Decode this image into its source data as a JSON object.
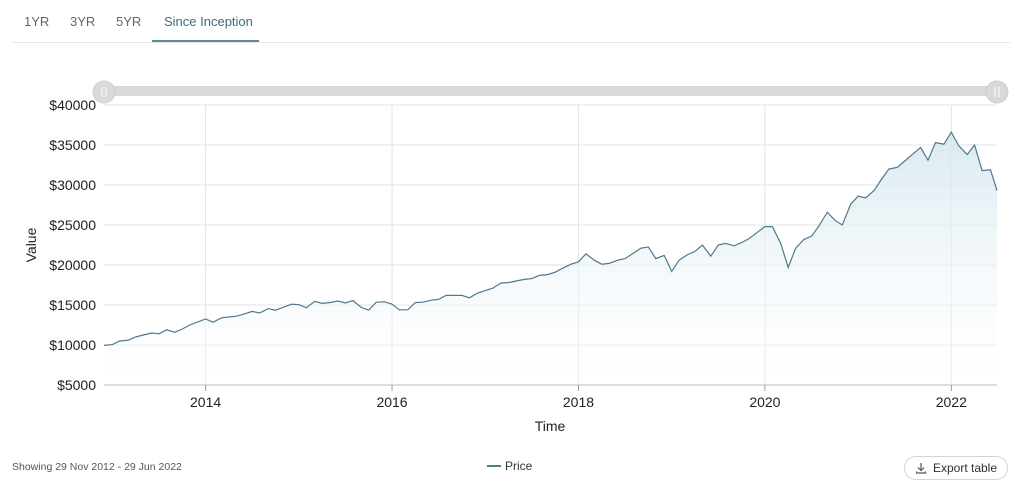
{
  "tabs": [
    {
      "label": "1YR",
      "active": false
    },
    {
      "label": "3YR",
      "active": false
    },
    {
      "label": "5YR",
      "active": false
    },
    {
      "label": "Since Inception",
      "active": true
    }
  ],
  "footer": {
    "range_text": "Showing 29 Nov 2012 - 29 Jun 2022",
    "export_label": "Export table",
    "export_icon": "download-icon"
  },
  "colors": {
    "line": "#4e7a8c",
    "area_top": "#d6e7ee",
    "active_tab": "#3d6c7c",
    "slider": "#d9d9d9"
  },
  "chart_data": {
    "type": "area",
    "xlabel": "Time",
    "ylabel": "Value",
    "xlim": [
      2012.91,
      2022.49
    ],
    "ylim": [
      5000,
      40000
    ],
    "xticks": [
      2014,
      2016,
      2018,
      2020,
      2022
    ],
    "xtick_labels": [
      "2014",
      "2016",
      "2018",
      "2020",
      "2022"
    ],
    "yticks": [
      5000,
      10000,
      15000,
      20000,
      25000,
      30000,
      35000,
      40000
    ],
    "ytick_labels": [
      "$5000",
      "$10000",
      "$15000",
      "$20000",
      "$25000",
      "$30000",
      "$35000",
      "$40000"
    ],
    "grid": true,
    "legend_position": "bottom-center",
    "series": [
      {
        "name": "Price",
        "points": [
          [
            2012.91,
            9950
          ],
          [
            2013.0,
            10050
          ],
          [
            2013.08,
            10500
          ],
          [
            2013.17,
            10600
          ],
          [
            2013.25,
            11000
          ],
          [
            2013.33,
            11250
          ],
          [
            2013.42,
            11500
          ],
          [
            2013.5,
            11400
          ],
          [
            2013.58,
            11900
          ],
          [
            2013.67,
            11600
          ],
          [
            2013.75,
            12000
          ],
          [
            2013.83,
            12500
          ],
          [
            2013.92,
            12900
          ],
          [
            2014.0,
            13250
          ],
          [
            2014.08,
            12850
          ],
          [
            2014.17,
            13400
          ],
          [
            2014.25,
            13500
          ],
          [
            2014.33,
            13600
          ],
          [
            2014.42,
            13900
          ],
          [
            2014.5,
            14200
          ],
          [
            2014.58,
            14000
          ],
          [
            2014.67,
            14550
          ],
          [
            2014.75,
            14350
          ],
          [
            2014.83,
            14700
          ],
          [
            2014.92,
            15100
          ],
          [
            2015.0,
            15050
          ],
          [
            2015.08,
            14650
          ],
          [
            2015.17,
            15450
          ],
          [
            2015.25,
            15200
          ],
          [
            2015.33,
            15300
          ],
          [
            2015.42,
            15500
          ],
          [
            2015.5,
            15250
          ],
          [
            2015.58,
            15550
          ],
          [
            2015.67,
            14700
          ],
          [
            2015.75,
            14350
          ],
          [
            2015.83,
            15350
          ],
          [
            2015.92,
            15400
          ],
          [
            2016.0,
            15100
          ],
          [
            2016.08,
            14400
          ],
          [
            2016.17,
            14400
          ],
          [
            2016.25,
            15300
          ],
          [
            2016.33,
            15350
          ],
          [
            2016.42,
            15600
          ],
          [
            2016.5,
            15700
          ],
          [
            2016.58,
            16200
          ],
          [
            2016.67,
            16200
          ],
          [
            2016.75,
            16200
          ],
          [
            2016.83,
            15900
          ],
          [
            2016.92,
            16500
          ],
          [
            2017.0,
            16800
          ],
          [
            2017.08,
            17100
          ],
          [
            2017.17,
            17750
          ],
          [
            2017.25,
            17800
          ],
          [
            2017.33,
            18000
          ],
          [
            2017.42,
            18200
          ],
          [
            2017.5,
            18300
          ],
          [
            2017.58,
            18700
          ],
          [
            2017.67,
            18800
          ],
          [
            2017.75,
            19100
          ],
          [
            2017.83,
            19600
          ],
          [
            2017.92,
            20100
          ],
          [
            2018.0,
            20400
          ],
          [
            2018.08,
            21400
          ],
          [
            2018.17,
            20600
          ],
          [
            2018.25,
            20100
          ],
          [
            2018.33,
            20200
          ],
          [
            2018.42,
            20600
          ],
          [
            2018.5,
            20800
          ],
          [
            2018.58,
            21400
          ],
          [
            2018.67,
            22100
          ],
          [
            2018.75,
            22250
          ],
          [
            2018.83,
            20800
          ],
          [
            2018.92,
            21200
          ],
          [
            2019.0,
            19200
          ],
          [
            2019.08,
            20600
          ],
          [
            2019.17,
            21300
          ],
          [
            2019.25,
            21700
          ],
          [
            2019.33,
            22500
          ],
          [
            2019.42,
            21100
          ],
          [
            2019.5,
            22500
          ],
          [
            2019.58,
            22700
          ],
          [
            2019.67,
            22400
          ],
          [
            2019.75,
            22800
          ],
          [
            2019.83,
            23300
          ],
          [
            2019.92,
            24100
          ],
          [
            2020.0,
            24800
          ],
          [
            2020.08,
            24800
          ],
          [
            2020.17,
            22700
          ],
          [
            2020.25,
            19700
          ],
          [
            2020.33,
            22100
          ],
          [
            2020.42,
            23200
          ],
          [
            2020.5,
            23600
          ],
          [
            2020.58,
            24900
          ],
          [
            2020.67,
            26600
          ],
          [
            2020.75,
            25600
          ],
          [
            2020.83,
            25000
          ],
          [
            2020.92,
            27600
          ],
          [
            2021.0,
            28600
          ],
          [
            2021.08,
            28400
          ],
          [
            2021.17,
            29300
          ],
          [
            2021.25,
            30700
          ],
          [
            2021.33,
            32000
          ],
          [
            2021.42,
            32200
          ],
          [
            2021.5,
            33000
          ],
          [
            2021.58,
            33800
          ],
          [
            2021.67,
            34700
          ],
          [
            2021.75,
            33100
          ],
          [
            2021.83,
            35300
          ],
          [
            2021.92,
            35100
          ],
          [
            2022.0,
            36600
          ],
          [
            2022.08,
            34900
          ],
          [
            2022.17,
            33800
          ],
          [
            2022.25,
            35000
          ],
          [
            2022.33,
            31800
          ],
          [
            2022.42,
            31900
          ],
          [
            2022.49,
            29300
          ]
        ]
      }
    ]
  }
}
